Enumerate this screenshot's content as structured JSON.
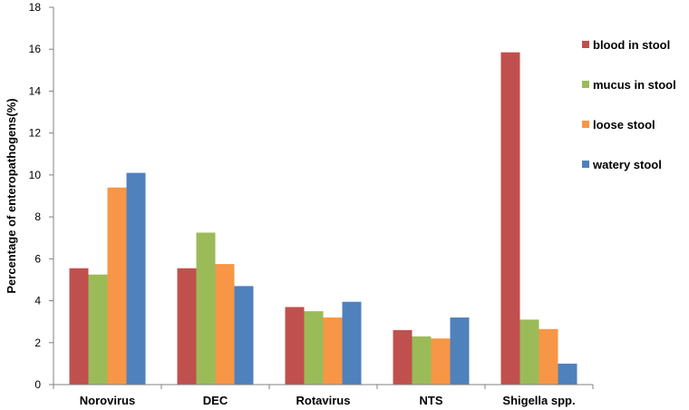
{
  "chart_data": {
    "type": "bar",
    "ylabel": "Percentage of enteropathogens(%)",
    "xlabel": "",
    "ylim": [
      0,
      18
    ],
    "yticks": [
      0,
      2,
      4,
      6,
      8,
      10,
      12,
      14,
      16,
      18
    ],
    "categories": [
      "Norovirus",
      "DEC",
      "Rotavirus",
      "NTS",
      "Shigella spp."
    ],
    "series": [
      {
        "name": "blood in stool",
        "color": "#c0504d",
        "values": [
          5.55,
          5.55,
          3.7,
          2.6,
          15.85
        ]
      },
      {
        "name": "mucus in stool",
        "color": "#9bbb59",
        "values": [
          5.25,
          7.25,
          3.5,
          2.3,
          3.1
        ]
      },
      {
        "name": "loose stool",
        "color": "#f79646",
        "values": [
          9.4,
          5.75,
          3.2,
          2.2,
          2.65
        ]
      },
      {
        "name": "watery stool",
        "color": "#4f81bd",
        "values": [
          10.1,
          4.7,
          3.95,
          3.2,
          1.0
        ]
      }
    ],
    "legend_position": "right",
    "grid": false
  }
}
